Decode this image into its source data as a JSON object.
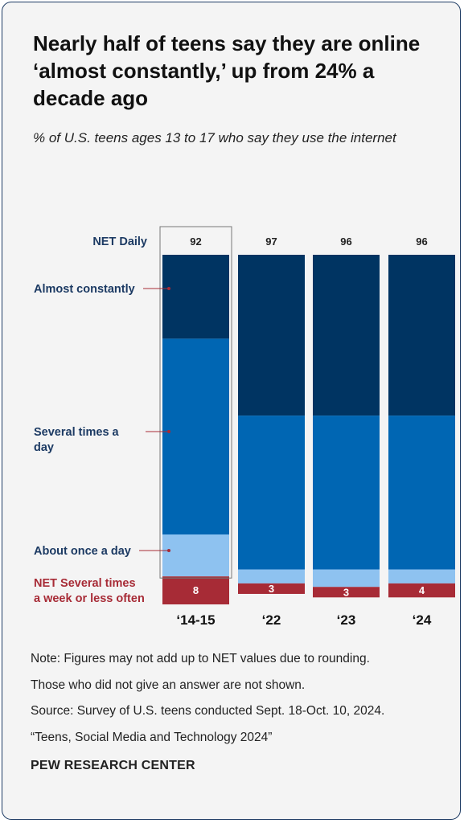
{
  "chart_data": {
    "type": "bar",
    "stacked": true,
    "title": "Nearly half of teens say they are online ‘almost constantly,’ up from 24% a decade ago",
    "subtitle": "% of U.S. teens ages 13 to 17 who say they use the internet",
    "categories": [
      "‘14-15",
      "‘22",
      "‘23",
      "‘24"
    ],
    "net_label": "NET Daily",
    "net_daily": [
      "92",
      "97",
      "96",
      "96"
    ],
    "highlighted_category": "‘14-15",
    "ylim": [
      0,
      100
    ],
    "series": [
      {
        "name": "Almost constantly",
        "values": [
          24,
          46,
          46,
          46
        ],
        "color": "#003462"
      },
      {
        "name": "Several times a day",
        "values": [
          56,
          44,
          44,
          44
        ],
        "color": "#0066b3"
      },
      {
        "name": "About once a day",
        "values": [
          12,
          4,
          5,
          4
        ],
        "color": "#8ec2f0"
      },
      {
        "name": "NET Several times a week or less often",
        "values": [
          8,
          3,
          3,
          4
        ],
        "color": "#a72b36",
        "labels": [
          "8",
          "3",
          "3",
          "4"
        ]
      }
    ]
  },
  "notes": {
    "note1": "Note: Figures may not add up to NET values due to rounding.",
    "note2": "Those who did not give an answer are not shown.",
    "source": "Source: Survey of U.S. teens conducted Sept. 18-Oct. 10, 2024.",
    "report": "“Teens, Social Media and Technology 2024”"
  },
  "brand": "PEW RESEARCH CENTER"
}
